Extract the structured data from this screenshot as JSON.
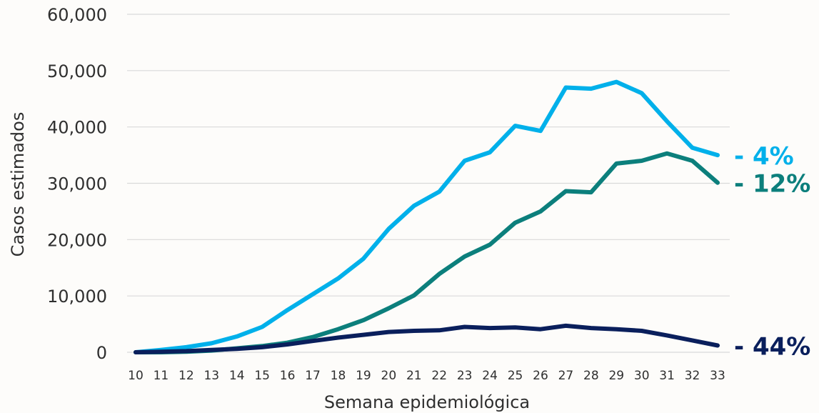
{
  "chart_data": {
    "type": "line",
    "xlabel": "Semana epidemiológica",
    "ylabel": "Casos estimados",
    "ylim": [
      0,
      60000
    ],
    "yticks": [
      0,
      10000,
      20000,
      30000,
      40000,
      50000,
      60000
    ],
    "ytick_labels": [
      "0",
      "10,000",
      "20,000",
      "30,000",
      "40,000",
      "50,000",
      "60,000"
    ],
    "x": [
      10,
      11,
      12,
      13,
      14,
      15,
      16,
      17,
      18,
      19,
      20,
      21,
      22,
      23,
      24,
      25,
      26,
      27,
      28,
      29,
      30,
      31,
      32,
      33
    ],
    "x_labels": [
      "10",
      "11",
      "12",
      "13",
      "14",
      "15",
      "16",
      "17",
      "18",
      "19",
      "20",
      "21",
      "22",
      "23",
      "24",
      "25",
      "26",
      "27",
      "28",
      "29",
      "30",
      "31",
      "32",
      "33"
    ],
    "grid": "horizontal",
    "series": [
      {
        "color": "#00b0ea",
        "end_label": "- 4%",
        "values": [
          0,
          400,
          900,
          1600,
          2800,
          4500,
          7500,
          10300,
          13100,
          16600,
          21900,
          26000,
          28500,
          34000,
          35500,
          40200,
          39300,
          47000,
          46800,
          48000,
          46000,
          41000,
          36300,
          35000
        ]
      },
      {
        "color": "#0c7f7c",
        "end_label": "- 12%",
        "values": [
          0,
          0,
          100,
          300,
          700,
          1100,
          1700,
          2700,
          4100,
          5700,
          7800,
          10100,
          13900,
          17000,
          19100,
          23000,
          25000,
          28600,
          28400,
          33500,
          34000,
          35300,
          34000,
          30100
        ]
      },
      {
        "color": "#0a1f5c",
        "end_label": "- 44%",
        "values": [
          0,
          100,
          200,
          400,
          600,
          900,
          1400,
          2000,
          2600,
          3100,
          3600,
          3800,
          3900,
          4500,
          4300,
          4400,
          4100,
          4700,
          4300,
          4100,
          3800,
          3000,
          2100,
          1200
        ]
      }
    ]
  }
}
